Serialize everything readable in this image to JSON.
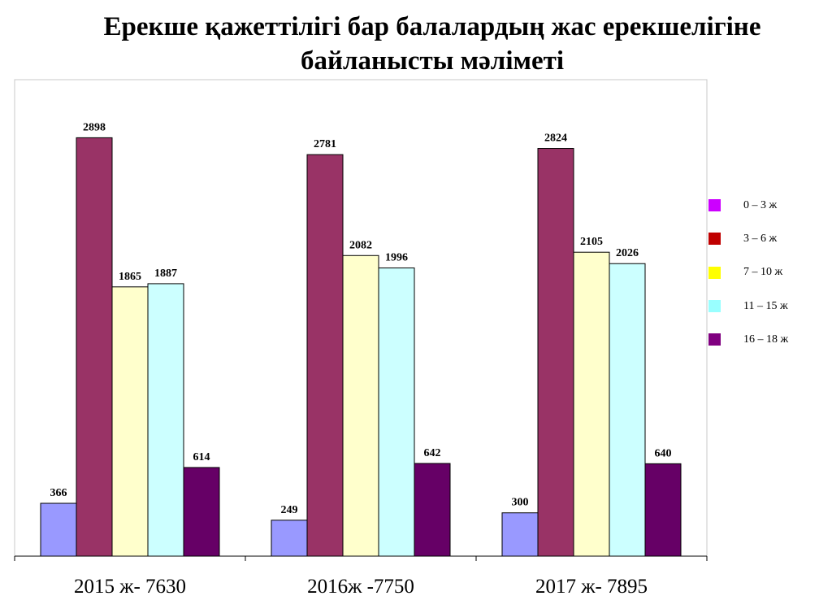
{
  "chart_data": {
    "type": "bar",
    "title_lines": [
      "Ерекше қажеттілігі бар балалардың жас ерекшелігіне",
      "байланысты мәліметі"
    ],
    "categories": [
      "2015 ж- 7630",
      "2016ж -7750",
      "2017 ж- 7895"
    ],
    "series": [
      {
        "name": "0 – 3 ж",
        "values": [
          366,
          249,
          300
        ],
        "color": "#9999ff",
        "legend_color": "#cc00ff"
      },
      {
        "name": "3 – 6 ж",
        "values": [
          2898,
          2781,
          2824
        ],
        "color": "#993366",
        "legend_color": "#c00000"
      },
      {
        "name": "7 – 10 ж",
        "values": [
          1865,
          2082,
          2105
        ],
        "color": "#ffffcc",
        "legend_color": "#ffff00"
      },
      {
        "name": "11 – 15 ж",
        "values": [
          1887,
          1996,
          2026
        ],
        "color": "#ccffff",
        "legend_color": "#99ffff"
      },
      {
        "name": "16 – 18 ж",
        "values": [
          614,
          642,
          640
        ],
        "color": "#660066",
        "legend_color": "#800080"
      }
    ],
    "ylim": [
      0,
      3300
    ],
    "grid": false,
    "legend_position": "right"
  }
}
